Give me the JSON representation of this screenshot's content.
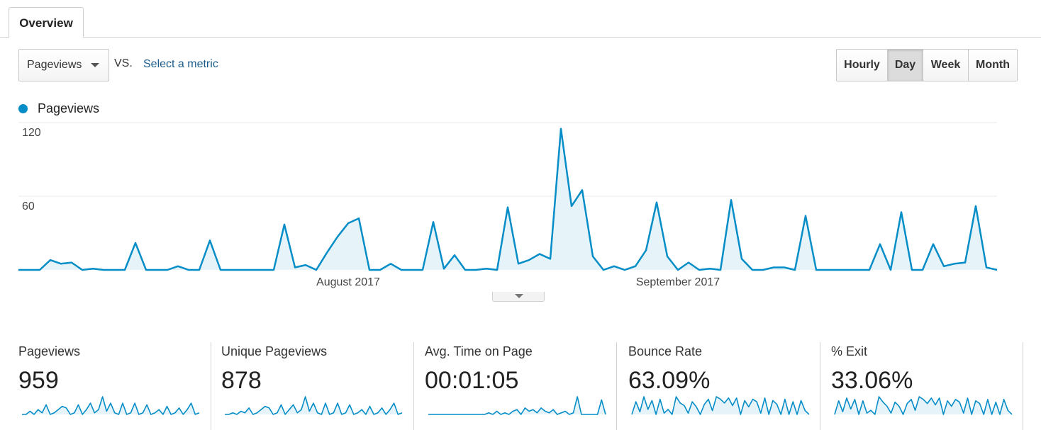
{
  "tab": {
    "label": "Overview"
  },
  "controls": {
    "metric_select": "Pageviews",
    "vs_label": "VS.",
    "select_metric_link": "Select a metric",
    "granularity": [
      {
        "label": "Hourly",
        "active": false
      },
      {
        "label": "Day",
        "active": true
      },
      {
        "label": "Week",
        "active": false
      },
      {
        "label": "Month",
        "active": false
      }
    ]
  },
  "colors": {
    "series": "#058dc7",
    "fill": "#e6f4fa",
    "grid": "#e8e8e8"
  },
  "chart_data": {
    "type": "area",
    "series": [
      {
        "name": "Pageviews",
        "values": [
          0,
          0,
          0,
          8,
          5,
          6,
          0,
          1,
          0,
          0,
          0,
          22,
          0,
          0,
          0,
          3,
          0,
          0,
          24,
          0,
          0,
          0,
          0,
          0,
          0,
          37,
          2,
          4,
          0,
          14,
          27,
          38,
          42,
          0,
          0,
          5,
          0,
          0,
          0,
          39,
          1,
          12,
          0,
          0,
          1,
          0,
          51,
          5,
          8,
          13,
          9,
          115,
          52,
          65,
          11,
          0,
          3,
          0,
          3,
          16,
          55,
          11,
          0,
          6,
          0,
          1,
          0,
          57,
          9,
          0,
          0,
          2,
          2,
          0,
          44,
          0,
          0,
          0,
          0,
          0,
          0,
          21,
          0,
          47,
          0,
          0,
          21,
          3,
          5,
          6,
          52,
          2,
          0
        ]
      }
    ],
    "x_labels": [
      {
        "label": "August 2017",
        "index": 31
      },
      {
        "label": "September 2017",
        "index": 62
      }
    ],
    "ylim": [
      0,
      120
    ],
    "y_ticks": [
      60,
      120
    ],
    "grid": true,
    "legend": "top-left"
  },
  "scorecards": [
    {
      "title": "Pageviews",
      "value": "959",
      "spark": [
        0,
        0,
        2,
        0,
        3,
        1,
        6,
        0,
        1,
        3,
        5,
        4,
        0,
        1,
        6,
        0,
        3,
        7,
        1,
        3,
        11,
        2,
        7,
        1,
        0,
        7,
        0,
        1,
        7,
        0,
        1,
        6,
        0,
        1,
        3,
        0,
        5,
        0,
        1,
        4,
        0,
        3,
        7,
        0,
        1
      ]
    },
    {
      "title": "Unique Pageviews",
      "value": "878",
      "spark": [
        0,
        0,
        1,
        0,
        2,
        1,
        4,
        0,
        1,
        3,
        5,
        4,
        0,
        1,
        6,
        0,
        3,
        6,
        1,
        3,
        11,
        2,
        7,
        1,
        0,
        7,
        0,
        1,
        7,
        0,
        1,
        6,
        0,
        1,
        3,
        0,
        5,
        0,
        1,
        4,
        0,
        3,
        7,
        0,
        1
      ]
    },
    {
      "title": "Avg. Time on Page",
      "value": "00:01:05",
      "spark": [
        0,
        0,
        0,
        0,
        0,
        0,
        0,
        0,
        0,
        0,
        0,
        0,
        0,
        0,
        0,
        1,
        0,
        2,
        0,
        1,
        0,
        2,
        3,
        0,
        4,
        2,
        3,
        1,
        4,
        2,
        1,
        3,
        0,
        1,
        2,
        0,
        1,
        11,
        0,
        0,
        0,
        0,
        0,
        9,
        0
      ]
    },
    {
      "title": "Bounce Rate",
      "value": "63.09%",
      "spark": [
        0,
        10,
        2,
        14,
        4,
        11,
        0,
        12,
        1,
        4,
        0,
        14,
        9,
        7,
        1,
        10,
        6,
        0,
        8,
        12,
        3,
        14,
        12,
        9,
        13,
        7,
        13,
        0,
        11,
        6,
        12,
        10,
        1,
        13,
        0,
        11,
        8,
        0,
        12,
        0,
        10,
        0,
        11,
        3,
        0
      ]
    },
    {
      "title": "% Exit",
      "value": "33.06%",
      "spark": [
        0,
        10,
        2,
        12,
        4,
        11,
        0,
        10,
        1,
        3,
        0,
        13,
        9,
        6,
        1,
        9,
        6,
        0,
        8,
        11,
        3,
        13,
        11,
        8,
        12,
        7,
        12,
        0,
        10,
        6,
        11,
        9,
        1,
        12,
        0,
        10,
        8,
        0,
        11,
        0,
        9,
        0,
        11,
        3,
        0
      ]
    }
  ]
}
